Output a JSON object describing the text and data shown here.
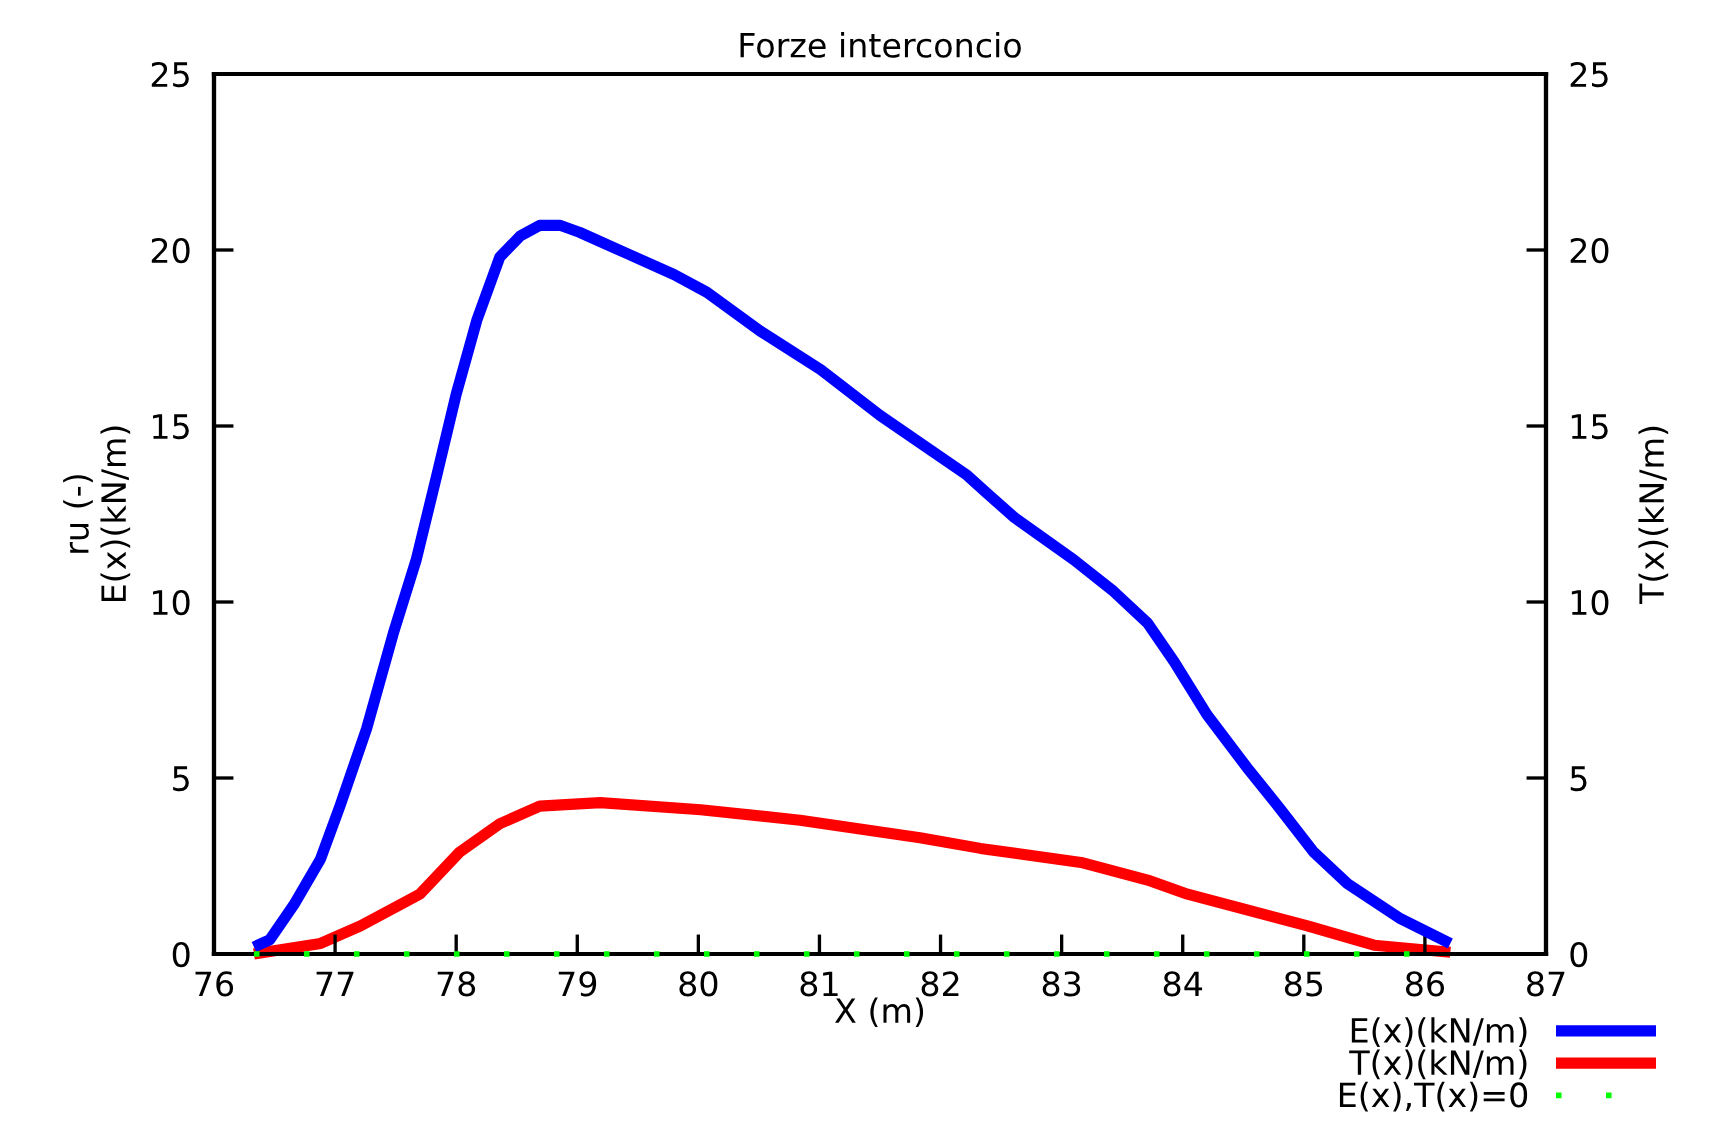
{
  "chart_data": {
    "type": "line",
    "title": "Forze interconcio",
    "xlabel": "X (m)",
    "ylabel": "ru (-)\nE(x)(kN/m)",
    "y2label": "T(x)(kN/m)",
    "xlim": [
      76,
      87
    ],
    "xticks": [
      76,
      77,
      78,
      79,
      80,
      81,
      82,
      83,
      84,
      85,
      86,
      87
    ],
    "ylim": [
      0,
      25
    ],
    "yticks": [
      0,
      5,
      10,
      15,
      20,
      25
    ],
    "y2lim": [
      0,
      25
    ],
    "y2ticks": [
      0,
      5,
      10,
      15,
      20,
      25
    ],
    "grid": false,
    "legend": "bottom right",
    "marker": "none",
    "series": [
      {
        "name": "E(x)(kN/m)",
        "color": "#0000ff",
        "line_style": "solid",
        "x": [
          76.33,
          76.46,
          76.66,
          76.88,
          77.04,
          77.26,
          77.48,
          77.67,
          77.84,
          78.0,
          78.17,
          78.36,
          78.53,
          78.69,
          78.86,
          79.02,
          79.41,
          79.8,
          80.07,
          80.51,
          81.01,
          81.5,
          82.22,
          82.38,
          82.61,
          83.1,
          83.43,
          83.71,
          83.93,
          84.2,
          84.53,
          84.81,
          85.08,
          85.36,
          85.8,
          86.21
        ],
        "values": [
          0.2,
          0.4,
          1.4,
          2.7,
          4.2,
          6.4,
          9.1,
          11.2,
          13.6,
          15.9,
          18.0,
          19.8,
          20.4,
          20.7,
          20.7,
          20.5,
          19.9,
          19.3,
          18.8,
          17.7,
          16.6,
          15.3,
          13.6,
          13.1,
          12.4,
          11.2,
          10.3,
          9.4,
          8.3,
          6.8,
          5.3,
          4.1,
          2.9,
          2.0,
          1.0,
          0.3
        ]
      },
      {
        "name": "T(x)(kN/m)",
        "color": "#ff0000",
        "line_style": "solid",
        "axis": "y2",
        "x": [
          76.33,
          76.88,
          77.21,
          77.7,
          78.03,
          78.36,
          78.69,
          79.19,
          80.02,
          80.84,
          81.83,
          82.33,
          83.16,
          83.71,
          84.04,
          85.03,
          85.58,
          86.21
        ],
        "values": [
          0,
          0.3,
          0.8,
          1.7,
          2.9,
          3.7,
          4.2,
          4.3,
          4.1,
          3.8,
          3.3,
          3.0,
          2.6,
          2.1,
          1.7,
          0.8,
          0.25,
          0.05
        ]
      },
      {
        "name": "E(x),T(x)=0",
        "color": "#00ff00",
        "line_style": "dotted",
        "x": [
          76.33,
          86.21
        ],
        "values": [
          0,
          0
        ]
      }
    ]
  }
}
